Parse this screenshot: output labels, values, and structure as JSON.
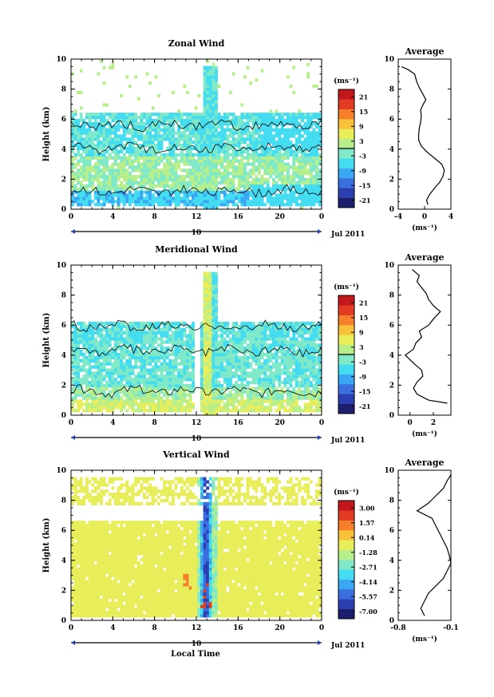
{
  "figure": {
    "bottom_label": "Local Time"
  },
  "colors": {
    "palette": [
      "#1e1e6e",
      "#2b3fb0",
      "#3b6fe0",
      "#3aa7f5",
      "#44dcf0",
      "#7fe9c8",
      "#b9ef8a",
      "#e8ee5a",
      "#f7c23a",
      "#f57f2a",
      "#e23b23",
      "#c2181c"
    ]
  },
  "chart_data": [
    {
      "type": "heatmap",
      "title": "Zonal Wind",
      "ylabel": "Height (km)",
      "ylim": [
        0,
        10
      ],
      "yticks": [
        "0",
        "2",
        "4",
        "6",
        "8",
        "10"
      ],
      "xticks": [
        "0",
        "4",
        "8",
        "12",
        "16",
        "20",
        "0"
      ],
      "xlim": [
        0,
        24
      ],
      "date_bar": {
        "day": "10",
        "month_label": "Jul 2011"
      },
      "colorbar": {
        "unit": "(ms⁻¹)",
        "ticks": [
          "21",
          "15",
          "9",
          "3",
          "-3",
          "-9",
          "-15",
          "-21"
        ],
        "zero_line_value": 0
      },
      "profile": {
        "title": "Average",
        "xlabel": "(ms⁻¹)",
        "xticks": [
          "-4",
          "0",
          "4"
        ],
        "xlim": [
          -4,
          4
        ],
        "yticks": [
          "0",
          "2",
          "4",
          "6",
          "8",
          "10"
        ],
        "points": [
          [
            0.5,
            0.3
          ],
          [
            0.3,
            0.6
          ],
          [
            0.8,
            1.0
          ],
          [
            1.5,
            1.4
          ],
          [
            2.3,
            1.8
          ],
          [
            2.8,
            2.2
          ],
          [
            3.0,
            2.6
          ],
          [
            2.6,
            3.0
          ],
          [
            1.5,
            3.4
          ],
          [
            0.4,
            3.8
          ],
          [
            -0.5,
            4.2
          ],
          [
            -0.9,
            4.6
          ],
          [
            -0.9,
            5.0
          ],
          [
            -0.8,
            5.4
          ],
          [
            -0.6,
            5.8
          ],
          [
            -0.5,
            6.2
          ],
          [
            -0.6,
            6.6
          ],
          [
            -0.2,
            7.0
          ],
          [
            0.2,
            7.3
          ],
          [
            -0.3,
            7.7
          ],
          [
            -0.8,
            8.1
          ],
          [
            -1.2,
            8.5
          ],
          [
            -1.5,
            9.0
          ],
          [
            -2.5,
            9.3
          ],
          [
            -3.5,
            9.5
          ]
        ]
      }
    },
    {
      "type": "heatmap",
      "title": "Meridional Wind",
      "ylabel": "Height (km)",
      "ylim": [
        0,
        10
      ],
      "yticks": [
        "0",
        "2",
        "4",
        "6",
        "8",
        "10"
      ],
      "xticks": [
        "0",
        "4",
        "8",
        "12",
        "16",
        "20",
        "0"
      ],
      "xlim": [
        0,
        24
      ],
      "date_bar": {
        "day": "10",
        "month_label": "Jul 2011"
      },
      "colorbar": {
        "unit": "(ms⁻¹)",
        "ticks": [
          "21",
          "15",
          "9",
          "3",
          "-3",
          "-9",
          "-15",
          "-21"
        ],
        "zero_line_value": 0
      },
      "profile": {
        "title": "Average",
        "xlabel": "(ms⁻¹)",
        "xticks": [
          "0",
          "2"
        ],
        "xlim": [
          -1,
          3.5
        ],
        "yticks": [
          "0",
          "2",
          "4",
          "6",
          "8",
          "10"
        ],
        "points": [
          [
            3.2,
            0.8
          ],
          [
            1.6,
            1.0
          ],
          [
            0.6,
            1.4
          ],
          [
            0.3,
            1.8
          ],
          [
            0.6,
            2.2
          ],
          [
            1.1,
            2.6
          ],
          [
            1.0,
            3.0
          ],
          [
            0.4,
            3.4
          ],
          [
            -0.4,
            4.0
          ],
          [
            0.3,
            4.4
          ],
          [
            0.5,
            4.8
          ],
          [
            1.0,
            5.2
          ],
          [
            0.8,
            5.6
          ],
          [
            1.6,
            6.0
          ],
          [
            2.0,
            6.4
          ],
          [
            2.6,
            6.9
          ],
          [
            2.0,
            7.3
          ],
          [
            1.6,
            7.7
          ],
          [
            1.4,
            8.1
          ],
          [
            1.0,
            8.5
          ],
          [
            0.6,
            8.9
          ],
          [
            0.8,
            9.3
          ],
          [
            0.2,
            9.7
          ]
        ]
      }
    },
    {
      "type": "heatmap",
      "title": "Vertical Wind",
      "ylabel": "Height (km)",
      "xlabel": "Local Time",
      "ylim": [
        0,
        10
      ],
      "yticks": [
        "0",
        "2",
        "4",
        "6",
        "8",
        "10"
      ],
      "xticks": [
        "0",
        "4",
        "8",
        "12",
        "16",
        "20",
        "0"
      ],
      "xlim": [
        0,
        24
      ],
      "date_bar": {
        "day": "10",
        "month_label": "Jul 2011"
      },
      "colorbar": {
        "unit": "(ms⁻¹)",
        "ticks": [
          "3.00",
          "1.57",
          "0.14",
          "-1.28",
          "-2.71",
          "-4.14",
          "-5.57",
          "-7.00"
        ]
      },
      "profile": {
        "title": "Average",
        "xlabel": "(ms⁻¹)",
        "xticks": [
          "-0.8",
          "-0.1"
        ],
        "xlim": [
          -0.8,
          -0.1
        ],
        "yticks": [
          "0",
          "2",
          "4",
          "6",
          "8",
          "10"
        ],
        "points": [
          [
            -0.45,
            0.3
          ],
          [
            -0.5,
            0.8
          ],
          [
            -0.45,
            1.3
          ],
          [
            -0.4,
            1.8
          ],
          [
            -0.3,
            2.3
          ],
          [
            -0.2,
            2.8
          ],
          [
            -0.15,
            3.3
          ],
          [
            -0.1,
            3.8
          ],
          [
            -0.12,
            4.3
          ],
          [
            -0.15,
            4.8
          ],
          [
            -0.2,
            5.3
          ],
          [
            -0.25,
            5.8
          ],
          [
            -0.3,
            6.3
          ],
          [
            -0.35,
            6.8
          ],
          [
            -0.55,
            7.3
          ],
          [
            -0.4,
            7.8
          ],
          [
            -0.3,
            8.3
          ],
          [
            -0.2,
            8.8
          ],
          [
            -0.15,
            9.3
          ],
          [
            -0.1,
            9.7
          ]
        ]
      }
    }
  ]
}
